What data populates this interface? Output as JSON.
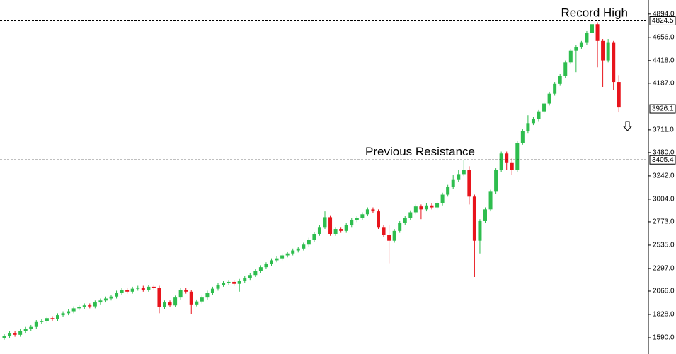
{
  "chart_data": {
    "type": "candlestick",
    "ylim": [
      1424,
      5037
    ],
    "yticks": [
      {
        "value": 1590,
        "label": "1590.0"
      },
      {
        "value": 1828,
        "label": "1828.0"
      },
      {
        "value": 2066,
        "label": "2066.0"
      },
      {
        "value": 2297,
        "label": "2297.0"
      },
      {
        "value": 2535,
        "label": "2535.0"
      },
      {
        "value": 2773,
        "label": "2773.0"
      },
      {
        "value": 3004,
        "label": "3004.0"
      },
      {
        "value": 3242,
        "label": "3242.0"
      },
      {
        "value": 3480,
        "label": "3480.0"
      },
      {
        "value": 3711,
        "label": "3711.0"
      },
      {
        "value": 4187,
        "label": "4187.0"
      },
      {
        "value": 4418,
        "label": "4418.0"
      },
      {
        "value": 4656,
        "label": "4656.0"
      },
      {
        "value": 4894,
        "label": "4894.0"
      }
    ],
    "up_color": "#2ebd4e",
    "down_color": "#e8141c",
    "levels": [
      {
        "name": "Record High",
        "value": 4824.5,
        "label": "4824.5"
      },
      {
        "name": "Previous Resistance",
        "value": 3405.4,
        "label": "3405.4"
      }
    ],
    "last_price": {
      "value": 3926.1,
      "label": "3926.1"
    },
    "open": [
      1590,
      1610,
      1640,
      1620,
      1660,
      1680,
      1700,
      1750,
      1760,
      1790,
      1780,
      1820,
      1840,
      1860,
      1890,
      1900,
      1920,
      1910,
      1950,
      1970,
      1990,
      2010,
      2050,
      2080,
      2060,
      2090,
      2100,
      2080,
      2110,
      2100,
      1900,
      1950,
      1920,
      2000,
      2080,
      2060,
      1930,
      1960,
      2000,
      2050,
      2090,
      2130,
      2150,
      2160,
      2140,
      2170,
      2200,
      2230,
      2270,
      2310,
      2340,
      2380,
      2400,
      2430,
      2450,
      2480,
      2500,
      2540,
      2590,
      2650,
      2720,
      2820,
      2650,
      2700,
      2680,
      2740,
      2790,
      2810,
      2850,
      2900,
      2880,
      2720,
      2640,
      2580,
      2680,
      2760,
      2810,
      2870,
      2930,
      2900,
      2940,
      2920,
      2960,
      3050,
      3130,
      3200,
      3260,
      3300,
      3030,
      2580,
      2780,
      2900,
      3080,
      3300,
      3470,
      3380,
      3300,
      3580,
      3700,
      3780,
      3820,
      3900,
      3980,
      4080,
      4180,
      4260,
      4400,
      4520,
      4560,
      4600,
      4700,
      4790,
      4620,
      4420,
      4600,
      4200
    ],
    "high": [
      1630,
      1660,
      1660,
      1680,
      1700,
      1720,
      1770,
      1780,
      1810,
      1810,
      1840,
      1860,
      1880,
      1910,
      1920,
      1940,
      1940,
      1970,
      1990,
      2010,
      2030,
      2070,
      2100,
      2100,
      2110,
      2120,
      2120,
      2130,
      2130,
      2120,
      1970,
      1970,
      2020,
      2100,
      2100,
      2080,
      1980,
      2020,
      2070,
      2110,
      2150,
      2170,
      2180,
      2180,
      2190,
      2220,
      2250,
      2290,
      2330,
      2360,
      2400,
      2420,
      2450,
      2470,
      2500,
      2520,
      2560,
      2610,
      2670,
      2740,
      2880,
      2840,
      2720,
      2720,
      2760,
      2810,
      2830,
      2870,
      2920,
      2920,
      2900,
      2740,
      2740,
      2700,
      2780,
      2830,
      2890,
      2950,
      2950,
      2960,
      2960,
      2980,
      3070,
      3150,
      3250,
      3300,
      3400,
      3340,
      3050,
      2800,
      2920,
      3100,
      3320,
      3490,
      3490,
      3420,
      3600,
      3720,
      3860,
      3840,
      3920,
      4000,
      4100,
      4200,
      4280,
      4420,
      4540,
      4580,
      4620,
      4720,
      4835,
      4810,
      4640,
      4640,
      4620,
      4270
    ],
    "low": [
      1570,
      1590,
      1600,
      1600,
      1640,
      1660,
      1680,
      1730,
      1740,
      1760,
      1760,
      1800,
      1820,
      1840,
      1870,
      1880,
      1890,
      1890,
      1930,
      1950,
      1970,
      1990,
      2030,
      2040,
      2040,
      2070,
      2060,
      2060,
      2080,
      1840,
      1880,
      1900,
      1900,
      1980,
      2040,
      1830,
      1910,
      1940,
      1980,
      2030,
      2070,
      2110,
      2130,
      2120,
      2060,
      2150,
      2180,
      2210,
      2250,
      2290,
      2320,
      2360,
      2380,
      2410,
      2430,
      2460,
      2480,
      2520,
      2570,
      2630,
      2700,
      2630,
      2630,
      2660,
      2660,
      2720,
      2770,
      2790,
      2830,
      2860,
      2700,
      2620,
      2350,
      2560,
      2660,
      2740,
      2790,
      2850,
      2800,
      2880,
      2900,
      2900,
      2940,
      3030,
      3110,
      3180,
      3240,
      2950,
      2210,
      2450,
      2760,
      2880,
      3060,
      3280,
      3300,
      3250,
      3280,
      3560,
      3680,
      3760,
      3800,
      3880,
      3960,
      4060,
      4160,
      4240,
      4380,
      4300,
      4540,
      4580,
      4680,
      4350,
      4150,
      4400,
      4120,
      3890
    ],
    "close": [
      1610,
      1640,
      1620,
      1660,
      1680,
      1700,
      1750,
      1760,
      1790,
      1780,
      1820,
      1840,
      1860,
      1890,
      1900,
      1920,
      1910,
      1950,
      1970,
      1990,
      2010,
      2050,
      2080,
      2060,
      2090,
      2100,
      2080,
      2110,
      2100,
      1900,
      1950,
      1920,
      2000,
      2080,
      2060,
      1930,
      1960,
      2000,
      2050,
      2090,
      2130,
      2150,
      2160,
      2140,
      2170,
      2200,
      2230,
      2270,
      2310,
      2340,
      2380,
      2400,
      2430,
      2450,
      2480,
      2500,
      2540,
      2590,
      2650,
      2720,
      2820,
      2650,
      2700,
      2680,
      2740,
      2790,
      2810,
      2850,
      2900,
      2880,
      2720,
      2640,
      2580,
      2680,
      2760,
      2810,
      2870,
      2930,
      2900,
      2940,
      2920,
      2960,
      3050,
      3130,
      3200,
      3260,
      3300,
      3030,
      2580,
      2780,
      2900,
      3080,
      3300,
      3470,
      3380,
      3300,
      3580,
      3700,
      3780,
      3820,
      3900,
      3980,
      4080,
      4180,
      4260,
      4400,
      4520,
      4560,
      4600,
      4700,
      4790,
      4620,
      4420,
      4600,
      4200,
      3940
    ]
  }
}
